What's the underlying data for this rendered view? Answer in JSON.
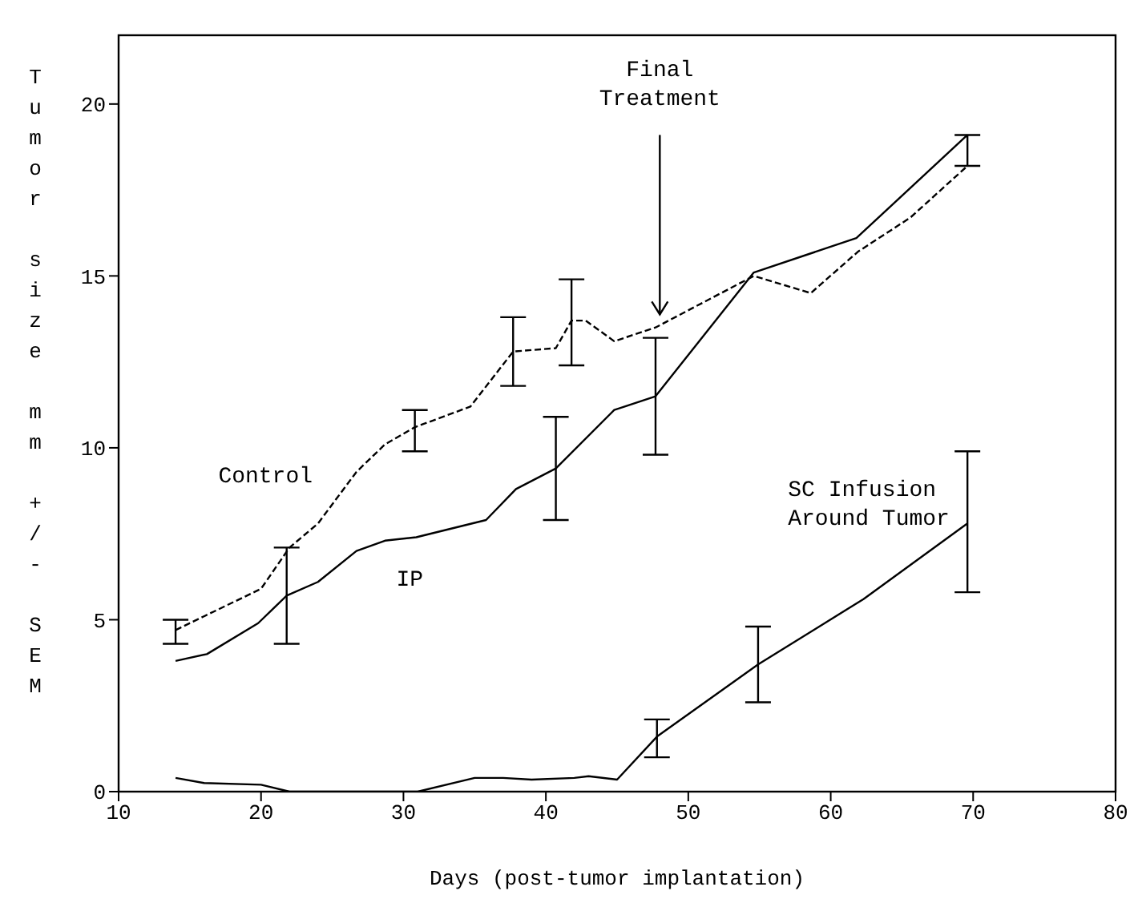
{
  "chart_data": {
    "type": "line",
    "xlabel": "Days (post-tumor implantation)",
    "ylabel": "Tumor size mm +/- SEM",
    "xlim": [
      10,
      80
    ],
    "xticks": [
      10,
      20,
      30,
      40,
      50,
      60,
      70,
      80
    ],
    "ylim": [
      0,
      22
    ],
    "yticks": [
      0,
      5,
      10,
      15,
      20
    ],
    "marker": "none",
    "annotations": [
      {
        "text": "Final Treatment",
        "x": 48,
        "y": 13.6
      }
    ],
    "series": [
      {
        "name": "Control",
        "color": "#000000",
        "line_style": "dashed",
        "x": [
          14,
          20,
          22,
          24,
          26.7,
          28.7,
          30.8,
          34.7,
          37.7,
          40.7,
          41.8,
          42.8,
          44.8,
          47.7,
          54.6,
          58.6,
          61.9,
          65.6,
          69.6
        ],
        "values": [
          4.7,
          5.9,
          7.1,
          7.8,
          9.3,
          10.1,
          10.6,
          11.2,
          12.8,
          12.9,
          13.7,
          13.7,
          13.1,
          13.5,
          15.0,
          14.5,
          15.7,
          16.7,
          18.2
        ],
        "errors": [
          [
            4.3,
            5.0
          ],
          null,
          null,
          null,
          null,
          null,
          [
            9.9,
            11.1
          ],
          null,
          [
            11.8,
            13.8
          ],
          null,
          [
            12.4,
            14.9
          ],
          null,
          null,
          null,
          null,
          null,
          null,
          null,
          null
        ]
      },
      {
        "name": "IP",
        "color": "#000000",
        "line_style": "solid",
        "x": [
          14,
          16.2,
          19.8,
          21.8,
          24,
          26.7,
          28.7,
          30.9,
          35.8,
          37.9,
          40.7,
          44.8,
          47.7,
          54.6,
          61.8,
          69.6
        ],
        "values": [
          3.8,
          4.0,
          4.9,
          5.7,
          6.1,
          7.0,
          7.3,
          7.4,
          7.9,
          8.8,
          9.4,
          11.1,
          11.5,
          15.1,
          16.1,
          19.1
        ],
        "errors": [
          null,
          null,
          null,
          [
            4.3,
            7.1
          ],
          null,
          null,
          null,
          null,
          null,
          null,
          [
            7.9,
            10.9
          ],
          null,
          [
            9.8,
            13.2
          ],
          null,
          null,
          [
            18.2,
            19.1
          ]
        ]
      },
      {
        "name": "SC Infusion Around Tumor",
        "color": "#000000",
        "line_style": "solid",
        "x": [
          14,
          16,
          20,
          22,
          31,
          35,
          37,
          39,
          42,
          43,
          45,
          47.8,
          54.9,
          62.3,
          69.6
        ],
        "values": [
          0.4,
          0.25,
          0.2,
          0,
          0,
          0.4,
          0.4,
          0.35,
          0.4,
          0.45,
          0.35,
          1.6,
          3.7,
          5.6,
          7.8
        ],
        "errors": [
          null,
          null,
          null,
          null,
          null,
          null,
          null,
          null,
          null,
          null,
          null,
          [
            1.0,
            2.1
          ],
          [
            2.6,
            4.8
          ],
          null,
          [
            5.8,
            9.9
          ]
        ]
      }
    ]
  }
}
